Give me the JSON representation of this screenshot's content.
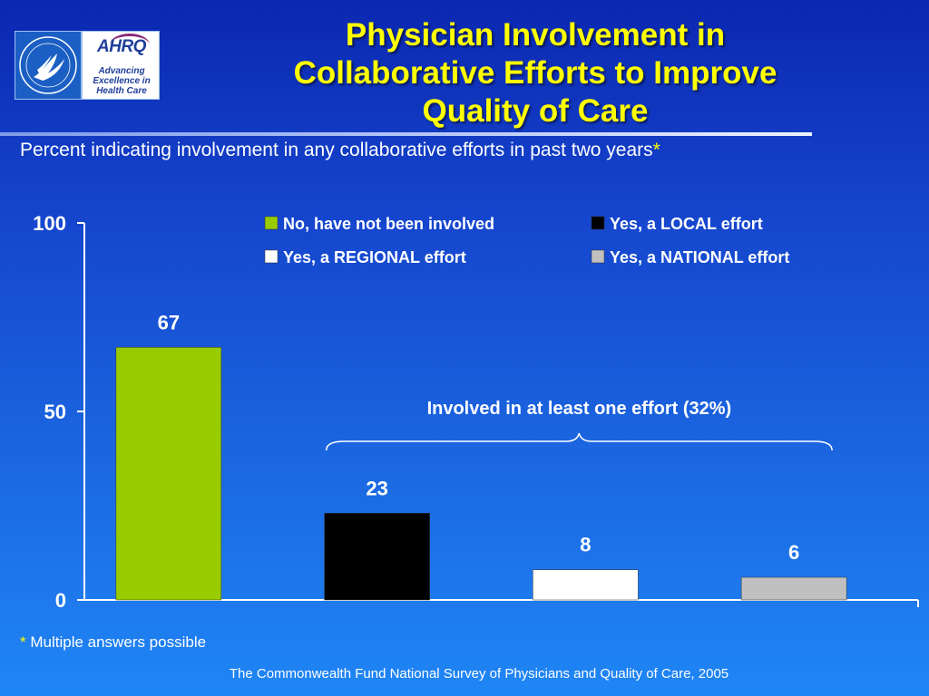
{
  "slide": {
    "title_lines": [
      "Physician Involvement in",
      "Collaborative Efforts to Improve",
      "Quality of Care"
    ],
    "subtitle": "Percent indicating involvement in any collaborative efforts in past two years",
    "subtitle_mark": "*",
    "footnote_mark": "*",
    "footnote": " Multiple answers possible",
    "source": "The Commonwealth Fund National Survey of Physicians and Quality of Care, 2005"
  },
  "logos": {
    "ahrq_word": "AHRQ",
    "ahrq_tagline": [
      "Advancing",
      "Excellence in",
      "Health Care"
    ],
    "hhs_icon": "hhs-eagle-seal-icon"
  },
  "chart_data": {
    "type": "bar",
    "categories": [
      "No, have not been involved",
      "Yes, a LOCAL effort",
      "Yes, a REGIONAL effort",
      "Yes, a NATIONAL effort"
    ],
    "values": [
      67,
      23,
      8,
      6
    ],
    "colors": [
      "#99cc00",
      "#000000",
      "#ffffff",
      "#c0c0c0"
    ],
    "ylim": [
      0,
      100
    ],
    "yticks": [
      0,
      50,
      100
    ],
    "grid": false,
    "legend_position": "top-right",
    "annotation": {
      "text": "Involved in at least one effort (32%)",
      "spans_categories": [
        1,
        3
      ]
    }
  }
}
